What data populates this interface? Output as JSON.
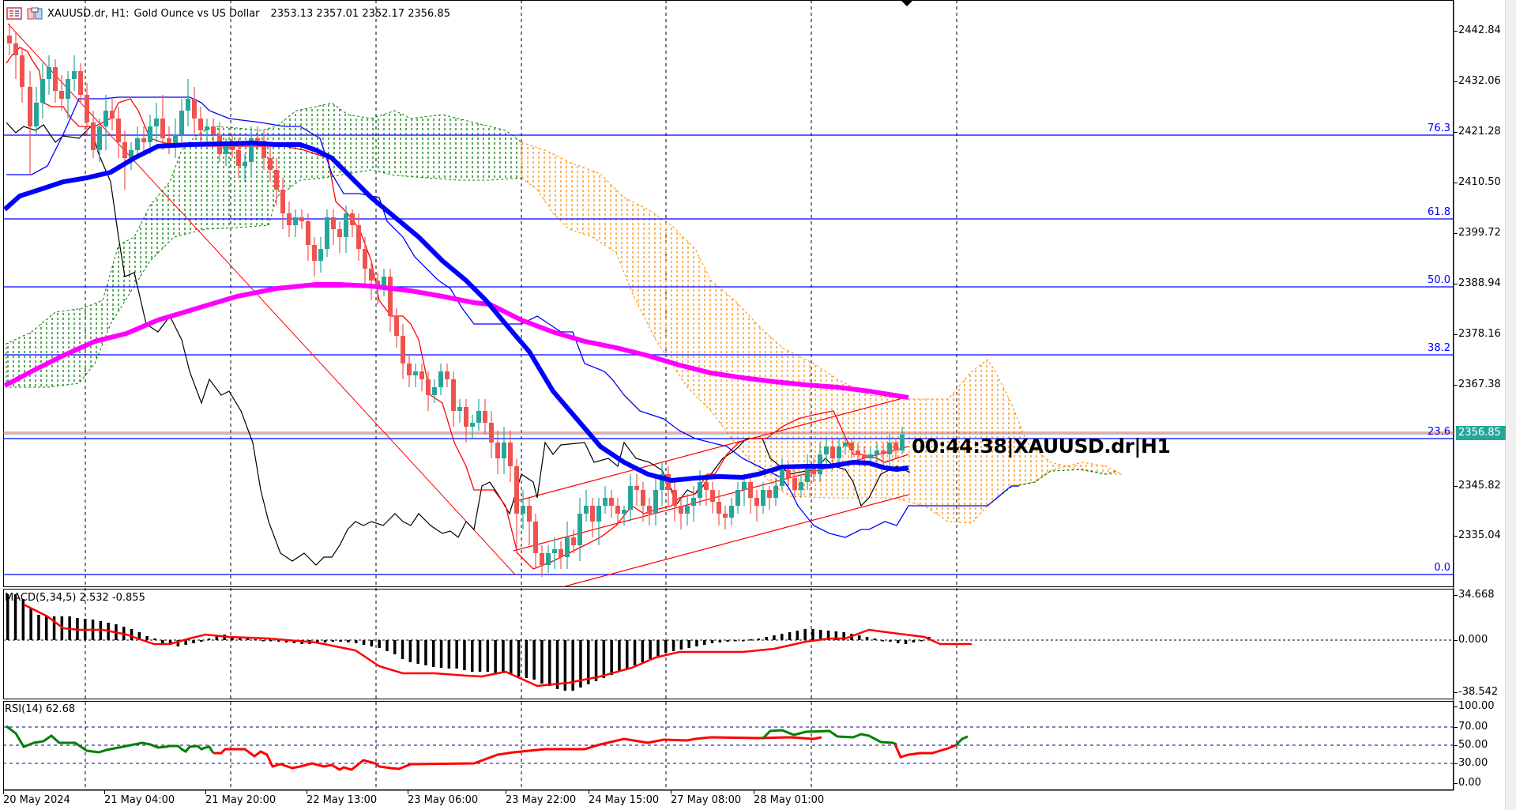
{
  "header": {
    "symbol": "XAUUSD.dr, H1:",
    "description": "Gold Ounce vs US Dollar",
    "ohlc": "2353.13 2357.01 2352.17 2356.85",
    "icons": [
      "list-icon",
      "template-icon"
    ]
  },
  "countdown": "00:44:38|XAUUSD.dr|H1",
  "current_price": "2356.85",
  "colors": {
    "bull_candle": "#26a69a",
    "bear_candle": "#ef5350",
    "ma_fast": "#0000ff",
    "ma_slow": "#ff00ff",
    "fib_lines": "#0000ff",
    "kumo_bull": "#008000",
    "kumo_bear": "#ff8c00",
    "macd_signal": "#ff0000",
    "rsi_above50": "#008000",
    "rsi_below50": "#ff0000"
  },
  "price_axis": [
    "2442.84",
    "2432.06",
    "2421.28",
    "2410.50",
    "2399.72",
    "2388.94",
    "2378.16",
    "2367.38",
    "2345.82",
    "2335.04"
  ],
  "fib_levels": [
    {
      "label": "76.3"
    },
    {
      "label": "61.8"
    },
    {
      "label": "50.0"
    },
    {
      "label": "38.2"
    },
    {
      "label": "23.6"
    },
    {
      "label": "0.0"
    }
  ],
  "macd": {
    "label": "MACD(5,34,5) 2.532 -0.855",
    "axis": [
      "34.668",
      "0.000",
      "-38.542"
    ]
  },
  "rsi": {
    "label": "RSI(14) 62.68",
    "axis": [
      "100.00",
      "70.00",
      "50.00",
      "30.00",
      "0.00"
    ]
  },
  "time_axis": [
    "20 May 2024",
    "21 May 04:00",
    "21 May 20:00",
    "22 May 13:00",
    "23 May 06:00",
    "23 May 22:00",
    "24 May 15:00",
    "27 May 08:00",
    "28 May 01:00"
  ],
  "chart_data": [
    {
      "type": "candlestick",
      "title": "XAUUSD.dr, H1: Gold Ounce vs US Dollar",
      "last_ohlc": {
        "open": 2353.13,
        "high": 2357.01,
        "low": 2352.17,
        "close": 2356.85
      },
      "ylim": [
        2328,
        2447
      ],
      "ytick_labels": [
        2442.84,
        2432.06,
        2421.28,
        2410.5,
        2399.72,
        2388.94,
        2378.16,
        2367.38,
        2356.85,
        2345.82,
        2335.04
      ],
      "xtick_labels": [
        "20 May 2024",
        "21 May 04:00",
        "21 May 20:00",
        "22 May 13:00",
        "23 May 06:00",
        "23 May 22:00",
        "24 May 15:00",
        "27 May 08:00",
        "28 May 01:00"
      ],
      "fibonacci": {
        "76.3": 2421.3,
        "61.8": 2403.5,
        "50.0": 2389.0,
        "38.2": 2374.5,
        "23.6": 2356.3,
        "0.0": 2327.6
      },
      "series": [
        {
          "name": "close_approx",
          "values": [
            2440,
            2432,
            2418,
            2425,
            2422,
            2416,
            2420,
            2415,
            2388,
            2380,
            2375,
            2360,
            2352,
            2345,
            2335,
            2332,
            2338,
            2341,
            2344,
            2340,
            2345,
            2350,
            2352,
            2355,
            2353,
            2345,
            2348,
            2356.85
          ]
        },
        {
          "name": "MA fast (blue)",
          "values": [
            2407,
            2415,
            2418,
            2418,
            2417,
            2405,
            2390,
            2370,
            2358,
            2352,
            2350,
            2352,
            2351
          ]
        },
        {
          "name": "MA slow (magenta)",
          "values": [
            2371,
            2380,
            2385,
            2389,
            2388,
            2384,
            2378,
            2372,
            2368,
            2365
          ]
        }
      ]
    },
    {
      "type": "bar",
      "title": "MACD(5,34,5)",
      "main": 2.532,
      "signal": -0.855,
      "ylim": [
        -38.542,
        34.668
      ]
    },
    {
      "type": "line",
      "title": "RSI(14)",
      "last_value": 62.68,
      "levels": [
        30,
        50,
        70
      ],
      "ylim": [
        0,
        100
      ]
    }
  ]
}
